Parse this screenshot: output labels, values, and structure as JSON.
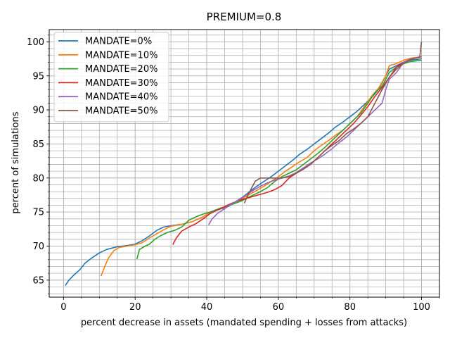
{
  "chart_data": {
    "type": "line",
    "title": "PREMIUM=0.8",
    "xlabel": "percent decrease in assets (mandated spending + losses from attacks)",
    "ylabel": "percent of simulations",
    "xlim": [
      -4,
      105
    ],
    "ylim": [
      62.5,
      101.8
    ],
    "x_major_ticks": [
      0,
      20,
      40,
      60,
      80,
      100
    ],
    "y_major_ticks": [
      65,
      70,
      75,
      80,
      85,
      90,
      95,
      100
    ],
    "x_minor_step": 5,
    "y_minor_step": 1,
    "grid": "both",
    "legend_position": "upper-left",
    "series": [
      {
        "name": "MANDATE=0%",
        "color": "#1f77b4",
        "points": [
          [
            0.5,
            64.2
          ],
          [
            1.5,
            65.0
          ],
          [
            3,
            65.8
          ],
          [
            4.5,
            66.5
          ],
          [
            6,
            67.5
          ],
          [
            8,
            68.3
          ],
          [
            10,
            69
          ],
          [
            12,
            69.5
          ],
          [
            15,
            69.9
          ],
          [
            18,
            70.1
          ],
          [
            20,
            70.3
          ],
          [
            22,
            70.8
          ],
          [
            24,
            71.5
          ],
          [
            26,
            72.3
          ],
          [
            28,
            72.8
          ],
          [
            30,
            73.0
          ],
          [
            33,
            73.2
          ],
          [
            36,
            73.6
          ],
          [
            39,
            74.3
          ],
          [
            41,
            75.0
          ],
          [
            43,
            75.3
          ],
          [
            46,
            75.8
          ],
          [
            48,
            76.5
          ],
          [
            50,
            77.2
          ],
          [
            52,
            78.0
          ],
          [
            54,
            78.8
          ],
          [
            56,
            79.5
          ],
          [
            58,
            80.2
          ],
          [
            60,
            81.0
          ],
          [
            62,
            81.8
          ],
          [
            64,
            82.6
          ],
          [
            66,
            83.5
          ],
          [
            68,
            84.2
          ],
          [
            70,
            85.0
          ],
          [
            72,
            85.8
          ],
          [
            74,
            86.6
          ],
          [
            76,
            87.5
          ],
          [
            78,
            88.2
          ],
          [
            80,
            89.0
          ],
          [
            82,
            89.8
          ],
          [
            84,
            90.8
          ],
          [
            86,
            91.8
          ],
          [
            88,
            93.0
          ],
          [
            90,
            95.0
          ],
          [
            91,
            96.0
          ],
          [
            93,
            96.5
          ],
          [
            95,
            97.0
          ],
          [
            97,
            97.3
          ],
          [
            100,
            97.5
          ]
        ]
      },
      {
        "name": "MANDATE=10%",
        "color": "#ff7f0e",
        "points": [
          [
            10.5,
            65.6
          ],
          [
            11.5,
            67.0
          ],
          [
            12.5,
            68.2
          ],
          [
            14,
            69.3
          ],
          [
            15.5,
            69.8
          ],
          [
            18,
            70.0
          ],
          [
            20,
            70.2
          ],
          [
            22,
            70.5
          ],
          [
            24,
            71.2
          ],
          [
            26,
            71.8
          ],
          [
            28,
            72.4
          ],
          [
            30,
            72.9
          ],
          [
            33,
            73.2
          ],
          [
            36,
            73.6
          ],
          [
            39,
            74.3
          ],
          [
            41,
            75.0
          ],
          [
            44,
            75.5
          ],
          [
            47,
            76.2
          ],
          [
            50,
            77.0
          ],
          [
            52,
            77.6
          ],
          [
            54,
            78.2
          ],
          [
            56,
            78.8
          ],
          [
            58,
            79.5
          ],
          [
            60,
            80.2
          ],
          [
            62,
            81.0
          ],
          [
            64,
            81.7
          ],
          [
            66,
            82.4
          ],
          [
            68,
            83.0
          ],
          [
            70,
            84.0
          ],
          [
            72,
            84.8
          ],
          [
            74,
            85.5
          ],
          [
            76,
            86.3
          ],
          [
            78,
            87.0
          ],
          [
            80,
            88.0
          ],
          [
            82,
            89.0
          ],
          [
            84,
            90.5
          ],
          [
            86,
            92.0
          ],
          [
            88,
            93.2
          ],
          [
            90,
            95.0
          ],
          [
            91,
            96.5
          ],
          [
            93,
            96.8
          ],
          [
            95,
            97.3
          ],
          [
            97,
            97.6
          ],
          [
            100,
            97.8
          ]
        ]
      },
      {
        "name": "MANDATE=20%",
        "color": "#2ca02c",
        "points": [
          [
            20.5,
            68.1
          ],
          [
            21.2,
            69.5
          ],
          [
            22.5,
            69.9
          ],
          [
            24,
            70.3
          ],
          [
            25.5,
            71.0
          ],
          [
            27,
            71.5
          ],
          [
            29,
            72.0
          ],
          [
            31,
            72.3
          ],
          [
            33,
            72.8
          ],
          [
            35,
            73.8
          ],
          [
            37,
            74.3
          ],
          [
            39,
            74.7
          ],
          [
            41,
            75.0
          ],
          [
            44,
            75.6
          ],
          [
            47,
            76.1
          ],
          [
            50,
            76.7
          ],
          [
            51,
            77.0
          ],
          [
            53,
            77.5
          ],
          [
            55,
            78.0
          ],
          [
            57,
            78.6
          ],
          [
            59,
            79.5
          ],
          [
            61,
            80.2
          ],
          [
            63,
            80.7
          ],
          [
            65,
            81.2
          ],
          [
            67,
            82.0
          ],
          [
            69,
            82.8
          ],
          [
            71,
            83.6
          ],
          [
            73,
            84.5
          ],
          [
            75,
            85.5
          ],
          [
            77,
            86.5
          ],
          [
            79,
            87.5
          ],
          [
            81,
            88.5
          ],
          [
            83,
            89.5
          ],
          [
            85,
            91.0
          ],
          [
            87,
            92.5
          ],
          [
            89,
            93.5
          ],
          [
            91,
            95.5
          ],
          [
            93,
            96.3
          ],
          [
            95,
            96.8
          ],
          [
            97,
            97.1
          ],
          [
            100,
            97.3
          ]
        ]
      },
      {
        "name": "MANDATE=30%",
        "color": "#d62728",
        "points": [
          [
            30.5,
            70.2
          ],
          [
            31.5,
            71.2
          ],
          [
            33,
            72.2
          ],
          [
            35,
            72.8
          ],
          [
            37,
            73.3
          ],
          [
            39,
            74.0
          ],
          [
            41,
            74.8
          ],
          [
            43,
            75.3
          ],
          [
            45,
            75.8
          ],
          [
            47,
            76.3
          ],
          [
            49,
            76.7
          ],
          [
            51,
            77.0
          ],
          [
            53,
            77.3
          ],
          [
            55,
            77.6
          ],
          [
            57,
            77.9
          ],
          [
            59,
            78.3
          ],
          [
            61,
            78.9
          ],
          [
            63,
            80.0
          ],
          [
            65,
            80.7
          ],
          [
            67,
            81.3
          ],
          [
            69,
            82.0
          ],
          [
            71,
            83.0
          ],
          [
            73,
            84.0
          ],
          [
            75,
            85.0
          ],
          [
            77,
            86.0
          ],
          [
            79,
            87.0
          ],
          [
            81,
            88.0
          ],
          [
            83,
            89.2
          ],
          [
            85,
            90.5
          ],
          [
            87,
            92.0
          ],
          [
            89,
            93.3
          ],
          [
            91,
            94.8
          ],
          [
            93,
            96.3
          ],
          [
            95,
            97.0
          ],
          [
            97,
            97.5
          ],
          [
            100,
            97.8
          ]
        ]
      },
      {
        "name": "MANDATE=40%",
        "color": "#9467bd",
        "points": [
          [
            40.5,
            73.1
          ],
          [
            41.5,
            74.0
          ],
          [
            43,
            74.8
          ],
          [
            45,
            75.5
          ],
          [
            47,
            76.2
          ],
          [
            49,
            76.8
          ],
          [
            51,
            77.5
          ],
          [
            53,
            78.2
          ],
          [
            55,
            78.8
          ],
          [
            57,
            79.3
          ],
          [
            59,
            79.7
          ],
          [
            61,
            80.0
          ],
          [
            63,
            80.3
          ],
          [
            65,
            80.8
          ],
          [
            67,
            81.5
          ],
          [
            69,
            82.2
          ],
          [
            71,
            82.8
          ],
          [
            73,
            83.5
          ],
          [
            75,
            84.3
          ],
          [
            77,
            85.2
          ],
          [
            79,
            86.0
          ],
          [
            81,
            87.0
          ],
          [
            83,
            88.0
          ],
          [
            85,
            89.0
          ],
          [
            87,
            90.0
          ],
          [
            89,
            91.0
          ],
          [
            90,
            93.0
          ],
          [
            91,
            94.5
          ],
          [
            93,
            95.5
          ],
          [
            95,
            97.0
          ],
          [
            97,
            97.5
          ],
          [
            100,
            97.8
          ]
        ]
      },
      {
        "name": "MANDATE=50%",
        "color": "#8c564b",
        "points": [
          [
            50.5,
            76.3
          ],
          [
            51.5,
            77.5
          ],
          [
            52.5,
            78.5
          ],
          [
            53.5,
            79.5
          ],
          [
            55,
            80.0
          ],
          [
            57,
            80.0
          ],
          [
            59,
            80.0
          ],
          [
            61,
            80.0
          ],
          [
            63,
            80.2
          ],
          [
            65,
            80.7
          ],
          [
            67,
            81.3
          ],
          [
            69,
            82.0
          ],
          [
            71,
            83.0
          ],
          [
            73,
            84.0
          ],
          [
            75,
            84.8
          ],
          [
            77,
            85.5
          ],
          [
            79,
            86.5
          ],
          [
            81,
            87.2
          ],
          [
            83,
            88.0
          ],
          [
            85,
            89.0
          ],
          [
            87,
            91.0
          ],
          [
            89,
            93.0
          ],
          [
            91,
            94.8
          ],
          [
            93,
            96.0
          ],
          [
            95,
            96.8
          ],
          [
            97,
            97.4
          ],
          [
            99.5,
            97.8
          ],
          [
            100,
            100.0
          ]
        ]
      }
    ]
  }
}
